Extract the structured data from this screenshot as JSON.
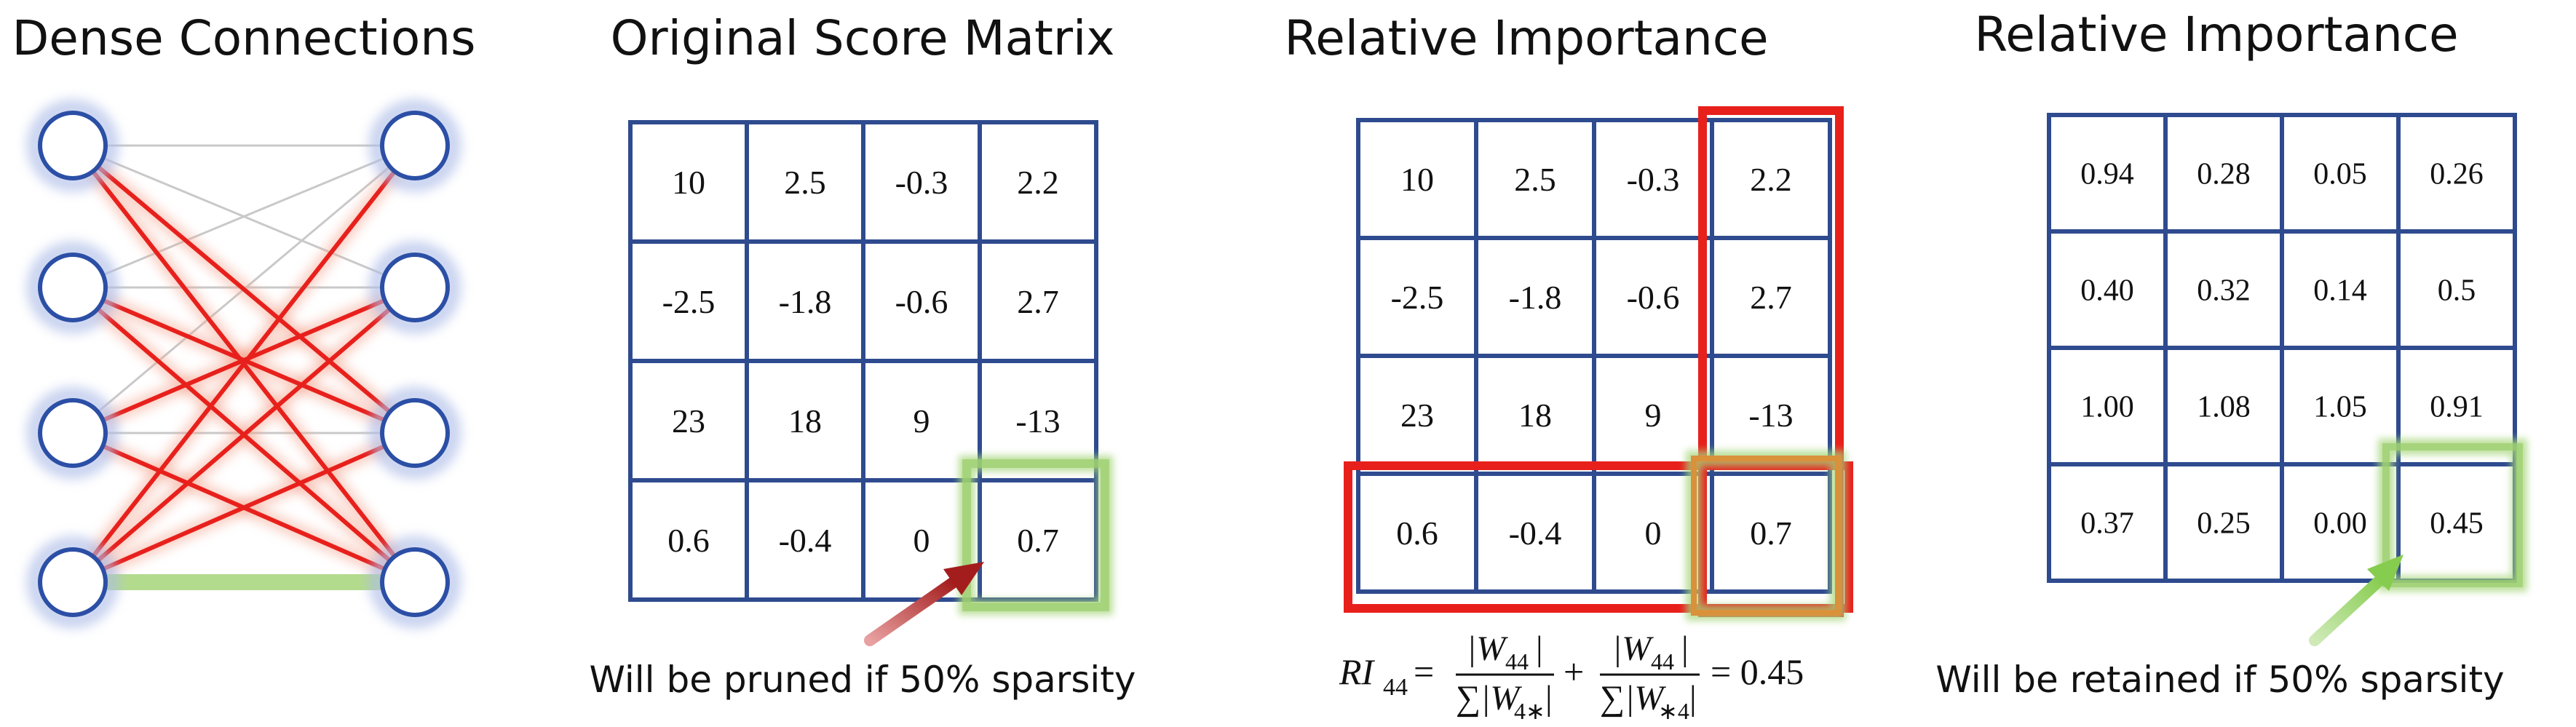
{
  "panels": {
    "dense": {
      "title": "Dense Connections"
    },
    "original": {
      "title": "Original Score Matrix",
      "cells": [
        [
          "10",
          "2.5",
          "-0.3",
          "2.2"
        ],
        [
          "-2.5",
          "-1.8",
          "-0.6",
          "2.7"
        ],
        [
          "23",
          "18",
          "9",
          "-13"
        ],
        [
          "0.6",
          "-0.4",
          "0",
          "0.7"
        ]
      ],
      "caption": "Will be pruned if 50% sparsity"
    },
    "relative1": {
      "title": "Relative Importance",
      "cells": [
        [
          "10",
          "2.5",
          "-0.3",
          "2.2"
        ],
        [
          "-2.5",
          "-1.8",
          "-0.6",
          "2.7"
        ],
        [
          "23",
          "18",
          "9",
          "-13"
        ],
        [
          "0.6",
          "-0.4",
          "0",
          "0.7"
        ]
      ]
    },
    "relative2": {
      "title": "Relative Importance",
      "cells": [
        [
          "0.94",
          "0.28",
          "0.05",
          "0.26"
        ],
        [
          "0.40",
          "0.32",
          "0.14",
          "0.5"
        ],
        [
          "1.00",
          "1.08",
          "1.05",
          "0.91"
        ],
        [
          "0.37",
          "0.25",
          "0.00",
          "0.45"
        ]
      ],
      "caption": "Will be retained if 50% sparsity"
    }
  },
  "formula": {
    "lhs": "RI",
    "lhs_sub": "44",
    "term1_num": "|W",
    "term1_num_sub": "44",
    "term1_den": "∑|W",
    "term1_den_sub": "4∗",
    "plus": "+",
    "term2_num": "|W",
    "term2_num_sub": "44",
    "term2_den": "∑|W",
    "term2_den_sub": "∗4",
    "result": "= 0.45"
  },
  "colors": {
    "grid": "#2f4b8f",
    "red": "#e8201c",
    "green": "#a6d57a",
    "orange": "#d9913a",
    "node": "#2c4fa6",
    "gray_edge": "#c9c9c9",
    "arrow_red": "#a41d1d",
    "arrow_green": "#8fd15a"
  }
}
